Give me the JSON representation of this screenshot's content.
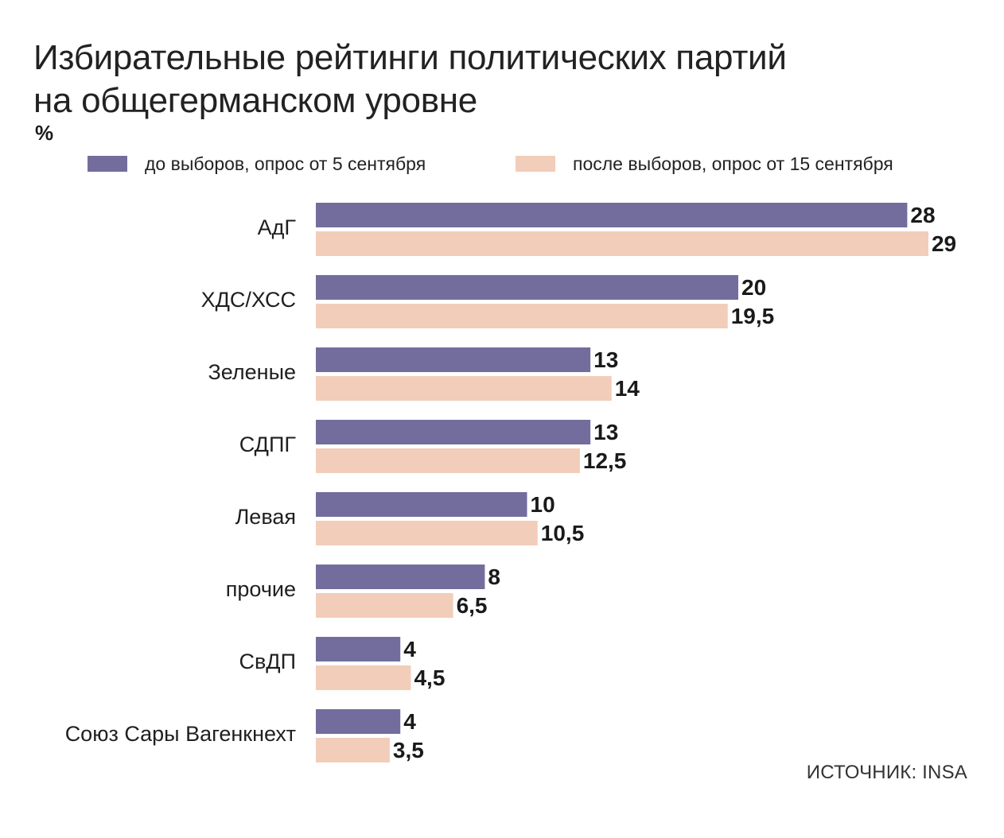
{
  "chart_data": {
    "type": "bar",
    "orientation": "horizontal",
    "title": "Избирательные рейтинги политических партий",
    "title_line2": "на общегерманском уровне",
    "unit": "%",
    "categories": [
      "АдГ",
      "ХДС/ХСС",
      "Зеленые",
      "СДПГ",
      "Левая",
      "прочие",
      "СвДП",
      "Союз Сары Вагенкнехт"
    ],
    "series": [
      {
        "name": "до выборов, опрос от 5 сентября",
        "color": "#736d9e",
        "values": [
          28,
          20,
          13,
          13,
          10,
          8,
          4,
          4
        ],
        "labels": [
          "28",
          "20",
          "13",
          "13",
          "10",
          "8",
          "4",
          "4"
        ]
      },
      {
        "name": "после выборов, опрос от 15 сентября",
        "color": "#f2cdb9",
        "values": [
          29,
          19.5,
          14,
          12.5,
          10.5,
          6.5,
          4.5,
          3.5
        ],
        "labels": [
          "29",
          "19,5",
          "14",
          "12,5",
          "10,5",
          "6,5",
          "4,5",
          "3,5"
        ]
      }
    ],
    "xlim": [
      0,
      29
    ],
    "grid": false,
    "legend_position": "top"
  },
  "source": "ИСТОЧНИК: INSA"
}
